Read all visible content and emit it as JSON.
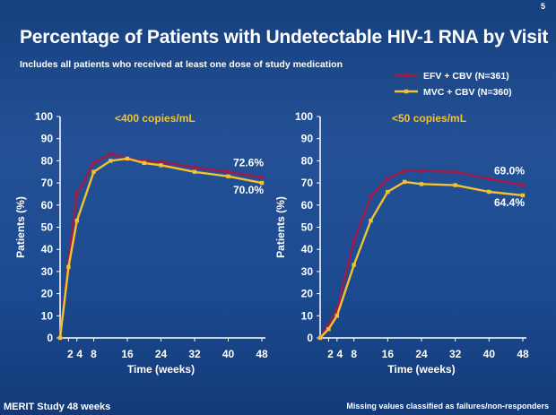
{
  "slide_number": "5",
  "title": "Percentage of Patients with Undetectable HIV-1 RNA by Visit",
  "subtitle": "Includes all patients who received at least one dose of study medication",
  "footer_left": "MERIT Study 48 weeks",
  "footer_right": "Missing values classified as failures/non-responders",
  "colors": {
    "efv": "#a01a4a",
    "mvc": "#f2c230",
    "panel_label": "#f2c230",
    "axis": "#ffffff"
  },
  "legend": [
    {
      "label": "EFV + CBV (N=361)",
      "series": "efv"
    },
    {
      "label": "MVC + CBV (N=360)",
      "series": "mvc"
    }
  ],
  "chart_data": [
    {
      "type": "line",
      "title": "<400 copies/mL",
      "xlabel": "Time (weeks)",
      "ylabel": "Patients (%)",
      "xlim": [
        0,
        48
      ],
      "ylim": [
        0,
        100
      ],
      "x_ticks": [
        "2",
        "4",
        "8",
        "16",
        "24",
        "32",
        "40",
        "48"
      ],
      "x_tick_values": [
        2,
        4,
        8,
        16,
        24,
        32,
        40,
        48
      ],
      "y_ticks": [
        0,
        10,
        20,
        30,
        40,
        50,
        60,
        70,
        80,
        90,
        100
      ],
      "grid": false,
      "series": [
        {
          "name": "EFV + CBV (N=361)",
          "key": "efv",
          "x": [
            0,
            2,
            4,
            8,
            12,
            16,
            20,
            24,
            32,
            40,
            48
          ],
          "y": [
            0,
            35,
            65,
            79,
            83,
            81,
            80,
            79.5,
            77,
            75,
            72.6
          ],
          "end_label": "72.6%"
        },
        {
          "name": "MVC + CBV (N=360)",
          "key": "mvc",
          "x": [
            0,
            2,
            4,
            8,
            12,
            16,
            20,
            24,
            32,
            40,
            48
          ],
          "y": [
            0,
            32,
            53,
            75,
            80,
            81,
            79,
            78,
            75,
            73,
            70.0
          ],
          "end_label": "70.0%"
        }
      ]
    },
    {
      "type": "line",
      "title": "<50 copies/mL",
      "xlabel": "Time (weeks)",
      "ylabel": "Patients (%)",
      "xlim": [
        0,
        48
      ],
      "ylim": [
        0,
        100
      ],
      "x_ticks": [
        "2",
        "4",
        "8",
        "16",
        "24",
        "32",
        "40",
        "48"
      ],
      "x_tick_values": [
        2,
        4,
        8,
        16,
        24,
        32,
        40,
        48
      ],
      "y_ticks": [
        0,
        10,
        20,
        30,
        40,
        50,
        60,
        70,
        80,
        90,
        100
      ],
      "grid": false,
      "series": [
        {
          "name": "EFV + CBV (N=361)",
          "key": "efv",
          "x": [
            0,
            2,
            4,
            8,
            12,
            16,
            20,
            24,
            32,
            40,
            48
          ],
          "y": [
            0,
            6,
            13,
            44,
            64,
            72,
            75.5,
            75.5,
            75,
            72,
            69.0
          ],
          "end_label": "69.0%"
        },
        {
          "name": "MVC + CBV (N=360)",
          "key": "mvc",
          "x": [
            0,
            2,
            4,
            8,
            12,
            16,
            20,
            24,
            32,
            40,
            48
          ],
          "y": [
            0,
            4,
            10,
            33,
            53,
            66,
            70.5,
            69.5,
            69,
            66,
            64.4
          ],
          "end_label": "64.4%"
        }
      ]
    }
  ]
}
